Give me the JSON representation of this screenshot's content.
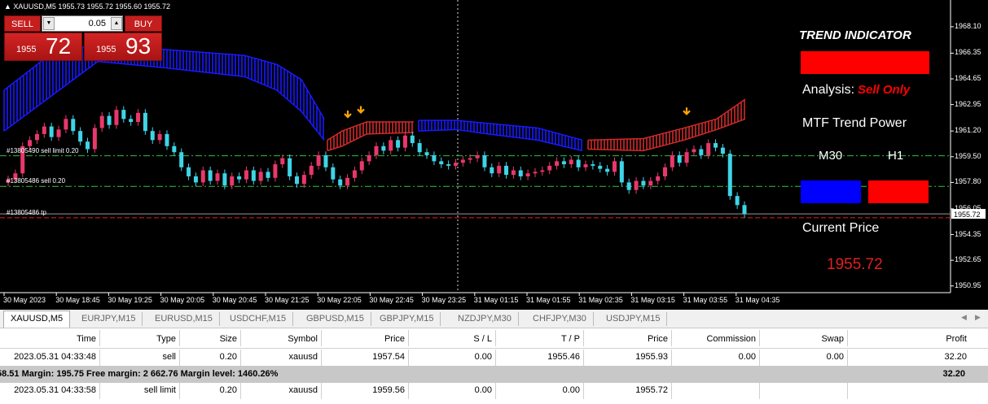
{
  "chart": {
    "symbol_title": "XAUUSD,M5 1955.73 1955.72 1955.60 1955.72",
    "price_scale": [
      "1968.10",
      "1966.35",
      "1964.65",
      "1962.95",
      "1961.20",
      "1959.50",
      "1957.80",
      "1956.05",
      "1954.35",
      "1952.65",
      "1950.95"
    ],
    "current_price_tag": "1955.72",
    "time_axis": [
      "30 May 2023",
      "30 May 18:45",
      "30 May 19:25",
      "30 May 20:05",
      "30 May 20:45",
      "30 May 21:25",
      "30 May 22:05",
      "30 May 22:45",
      "30 May 23:25",
      "31 May 01:15",
      "31 May 01:55",
      "31 May 02:35",
      "31 May 03:15",
      "31 May 03:55",
      "31 May 04:35"
    ],
    "order_lines": [
      {
        "label": "#13805490 sell limit 0.20",
        "price": 1959.56,
        "color": "#2fbf3f"
      },
      {
        "label": "#13805486 sell 0.20",
        "price": 1957.54,
        "color": "#2fbf3f"
      },
      {
        "label": "#13805486 tp",
        "price": 1955.46,
        "color": "#e02020"
      }
    ],
    "bid_line_price": 1955.72,
    "candle_colors": {
      "bull": "#e8386b",
      "bear": "#3fd4e6"
    },
    "band_colors": {
      "bearish": "#1a1aff",
      "bullish": "#d02a2a"
    },
    "signal_arrow_color": "#ffa500",
    "signal_arrows": [
      1961.8,
      1962.1,
      1962.0
    ],
    "candles_close": [
      1958.0,
      1958.4,
      1960.2,
      1960.6,
      1961.0,
      1961.5,
      1960.8,
      1961.3,
      1962.0,
      1961.2,
      1960.5,
      1960.0,
      1961.4,
      1962.2,
      1961.6,
      1962.6,
      1962.0,
      1961.8,
      1962.4,
      1961.2,
      1960.6,
      1961.0,
      1960.2,
      1959.8,
      1958.8,
      1958.2,
      1957.8,
      1958.6,
      1957.9,
      1958.4,
      1957.6,
      1958.2,
      1958.0,
      1958.6,
      1957.9,
      1958.5,
      1958.1,
      1959.0,
      1959.4,
      1958.2,
      1957.7,
      1958.3,
      1958.9,
      1959.6,
      1958.8,
      1958.0,
      1957.6,
      1958.1,
      1958.6,
      1959.2,
      1959.6,
      1960.2,
      1959.9,
      1960.6,
      1960.1,
      1960.9,
      1960.4,
      1959.8,
      1959.6,
      1959.2,
      1959.0,
      1958.9,
      1959.1,
      1959.3,
      1959.4,
      1959.6,
      1958.8,
      1958.4,
      1958.9,
      1958.3,
      1958.6,
      1958.2,
      1958.4,
      1958.5,
      1958.6,
      1958.9,
      1959.2,
      1959.0,
      1959.3,
      1958.8,
      1959.0,
      1958.9,
      1958.7,
      1958.5,
      1959.2,
      1957.8,
      1957.3,
      1957.9,
      1957.6,
      1957.9,
      1958.2,
      1958.8,
      1959.6,
      1959.1,
      1959.8,
      1960.0,
      1959.6,
      1960.4,
      1960.1,
      1959.7,
      1956.9,
      1956.3,
      1955.72
    ],
    "band_segments": [
      {
        "trend": "bearish",
        "points": [
          [
            5,
            1961.2,
            1963.9
          ],
          [
            60,
            1963.4,
            1966.2
          ],
          [
            120,
            1965.8,
            1967.0
          ],
          [
            200,
            1965.4,
            1966.6
          ],
          [
            300,
            1964.8,
            1966.2
          ],
          [
            340,
            1963.9,
            1965.6
          ],
          [
            370,
            1962.5,
            1964.6
          ],
          [
            398,
            1960.6,
            1962.0
          ]
        ]
      },
      {
        "trend": "bullish",
        "points": [
          [
            402,
            1959.9,
            1960.6
          ],
          [
            420,
            1960.2,
            1961.2
          ],
          [
            450,
            1961.0,
            1961.8
          ],
          [
            508,
            1961.1,
            1961.8
          ]
        ]
      },
      {
        "trend": "bearish",
        "points": [
          [
            514,
            1961.2,
            1961.9
          ],
          [
            560,
            1961.3,
            1961.9
          ],
          [
            600,
            1961.0,
            1961.7
          ],
          [
            660,
            1960.6,
            1961.4
          ],
          [
            715,
            1959.9,
            1960.6
          ]
        ]
      },
      {
        "trend": "bullish",
        "points": [
          [
            722,
            1960.0,
            1960.6
          ],
          [
            790,
            1959.9,
            1960.7
          ],
          [
            840,
            1960.6,
            1961.4
          ],
          [
            880,
            1961.3,
            1962.0
          ],
          [
            915,
            1962.0,
            1963.3
          ]
        ]
      }
    ],
    "vertical_line_x_time": "31 May 00:25"
  },
  "trade_panel": {
    "sell_label": "SELL",
    "buy_label": "BUY",
    "lot": "0.05",
    "sell_small": "1955",
    "sell_big": "72",
    "buy_small": "1955",
    "buy_big": "93",
    "spin_down": "▼",
    "spin_up": "▲"
  },
  "trend_indicator": {
    "title": "TREND INDICATOR",
    "trend_color": "#ff0000",
    "analysis_label": "Analysis:",
    "analysis_value": "Sell Only",
    "mtf_title": "MTF Trend Power",
    "tf1": "M30",
    "tf2": "H1",
    "tf1_color": "#0000ff",
    "tf2_color": "#ff0000",
    "current_price_label": "Current Price",
    "current_price_value": "1955.72"
  },
  "tabs": {
    "items": [
      "XAUUSD,M5",
      "EURJPY,M15",
      "EURUSD,M15",
      "USDCHF,M15",
      "GBPUSD,M15",
      "GBPJPY,M15",
      "NZDJPY,M30",
      "CHFJPY,M30",
      "USDJPY,M15"
    ],
    "active_index": 0,
    "left_arrow": "◀",
    "right_arrow": "▶"
  },
  "terminal": {
    "headers": [
      "Time",
      "Type",
      "Size",
      "Symbol",
      "Price",
      "S / L",
      "T / P",
      "Price",
      "Commission",
      "Swap",
      "Profit"
    ],
    "rows": [
      [
        "2023.05.31 04:33:48",
        "sell",
        "0.20",
        "xauusd",
        "1957.54",
        "0.00",
        "1955.46",
        "1955.93",
        "0.00",
        "0.00",
        "32.20"
      ],
      [
        "2023.05.31 04:33:58",
        "sell limit",
        "0.20",
        "xauusd",
        "1959.56",
        "0.00",
        "0.00",
        "1955.72",
        "",
        "",
        ""
      ]
    ],
    "balance_text": "58.51  Margin: 195.75  Free margin: 2 662.76  Margin level: 1460.26%",
    "balance_profit": "32.20"
  }
}
